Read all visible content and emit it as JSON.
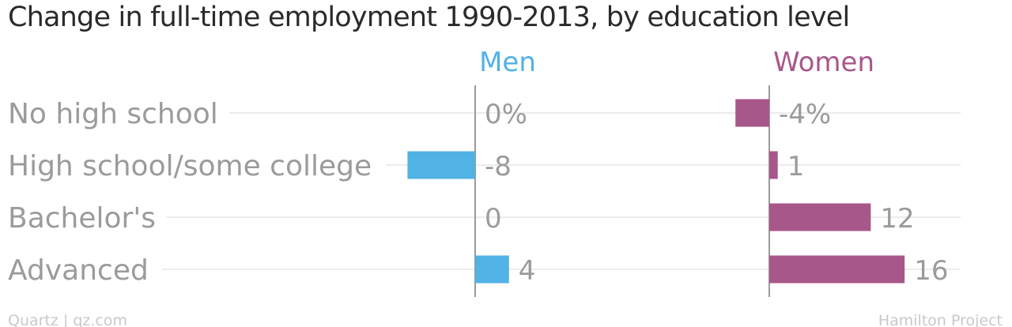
{
  "title": "Change in full-time employment 1990-2013, by education level",
  "colors": {
    "men": "#51b2e5",
    "women": "#a8578a",
    "text": "#9b9b9b",
    "grid": "#ececec",
    "axis": "#9b9b9b"
  },
  "chart_data": {
    "type": "bar",
    "orientation": "horizontal",
    "layout": "small-multiples",
    "categories": [
      "No high school",
      "High school/some college",
      "Bachelor's",
      "Advanced"
    ],
    "series": [
      {
        "name": "Men",
        "values": [
          0,
          -8,
          0,
          4
        ],
        "labels": [
          "0%",
          "-8",
          "0",
          "4"
        ],
        "color": "#51b2e5"
      },
      {
        "name": "Women",
        "values": [
          -4,
          1,
          12,
          16
        ],
        "labels": [
          "-4%",
          "1",
          "12",
          "16"
        ],
        "color": "#a8578a"
      }
    ],
    "grid": true
  },
  "footer": {
    "left": "Quartz | qz.com",
    "right": "Hamilton Project"
  }
}
